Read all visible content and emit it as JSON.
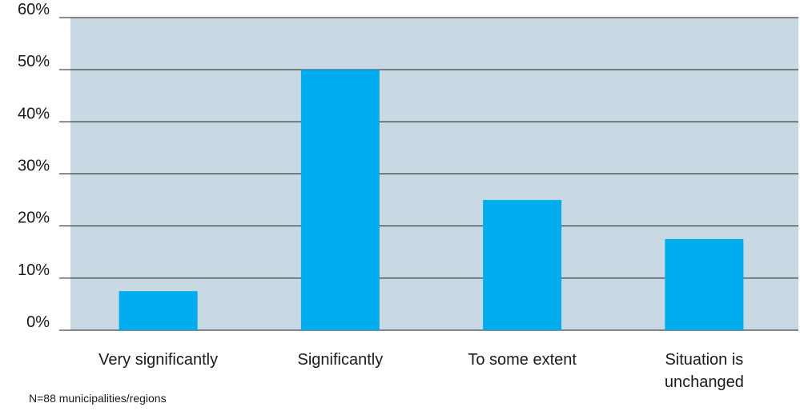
{
  "chart_data": {
    "type": "bar",
    "categories": [
      [
        "Very significantly"
      ],
      [
        "Significantly"
      ],
      [
        "To some extent"
      ],
      [
        "Situation is",
        "unchanged"
      ]
    ],
    "values": [
      7.5,
      50,
      25,
      17.5
    ],
    "unit": "%",
    "ylim": [
      0,
      60
    ],
    "yticks": [
      "0%",
      "10%",
      "20%",
      "30%",
      "40%",
      "50%",
      "60%"
    ],
    "grid": true,
    "colors": {
      "bar": "#00aeef",
      "plot_bg": "#c9d9e3",
      "gridline": "#1a1a1a"
    }
  },
  "footnote": "N=88 municipalities/regions"
}
